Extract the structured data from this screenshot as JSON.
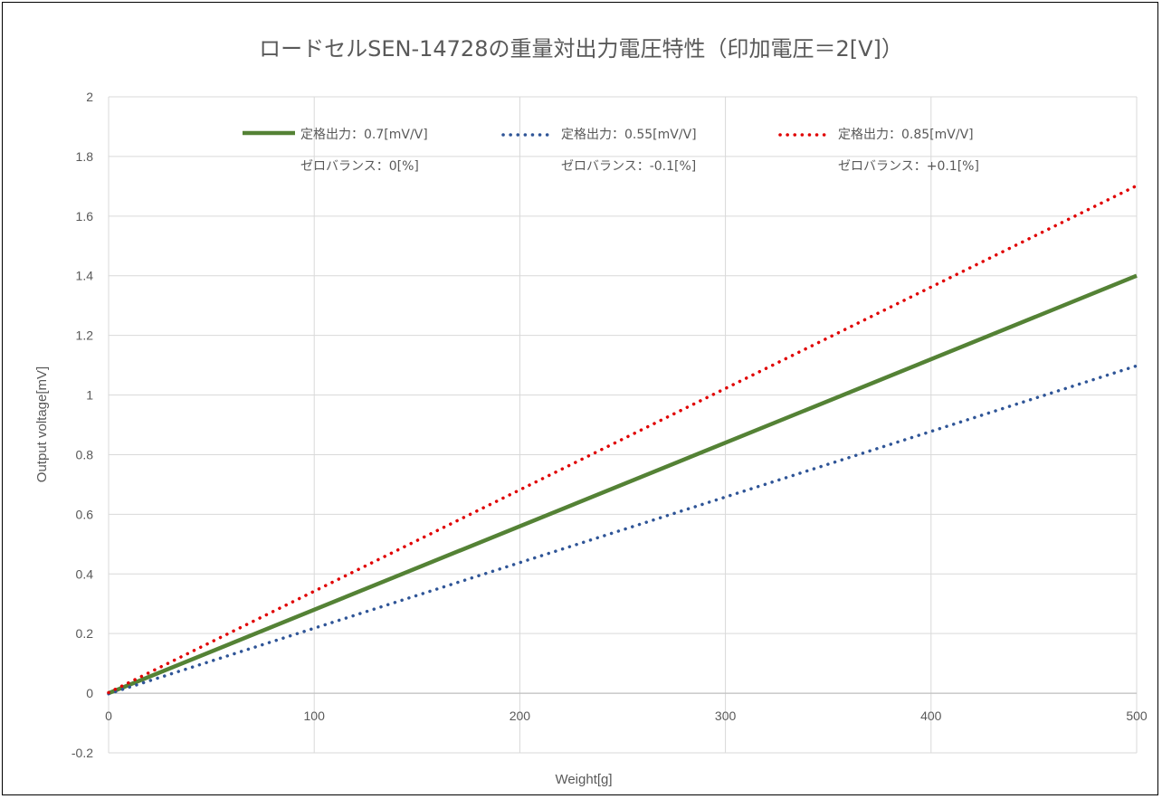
{
  "chart_data": {
    "type": "line",
    "title": "ロードセルSEN-14728の重量対出力電圧特性（印加電圧＝2[V]）",
    "xlabel": "Weight[g]",
    "ylabel": "Output voltage[mV]",
    "xlim": [
      0,
      500
    ],
    "ylim": [
      -0.2,
      2
    ],
    "x_ticks": [
      "0",
      "100",
      "200",
      "300",
      "400",
      "500"
    ],
    "y_ticks": [
      "-0.2",
      "0",
      "0.2",
      "0.4",
      "0.6",
      "0.8",
      "1",
      "1.2",
      "1.4",
      "1.6",
      "1.8",
      "2"
    ],
    "grid": true,
    "legend_position": "top",
    "series": [
      {
        "name_line1": "定格出力：0.7[mV/V]",
        "name_line2": "ゼロバランス：0[%]",
        "color": "#548235",
        "style": "solid",
        "x": [
          0,
          500
        ],
        "y": [
          0,
          1.4
        ]
      },
      {
        "name_line1": "定格出力：0.55[mV/V]",
        "name_line2": "ゼロバランス：-0.1[%]",
        "color": "#2F5597",
        "style": "dotted",
        "x": [
          0,
          500
        ],
        "y": [
          -0.002,
          1.098
        ]
      },
      {
        "name_line1": "定格出力：0.85[mV/V]",
        "name_line2": "ゼロバランス：+0.1[%]",
        "color": "#E00000",
        "style": "dotted",
        "x": [
          0,
          500
        ],
        "y": [
          0.002,
          1.702
        ]
      }
    ]
  }
}
